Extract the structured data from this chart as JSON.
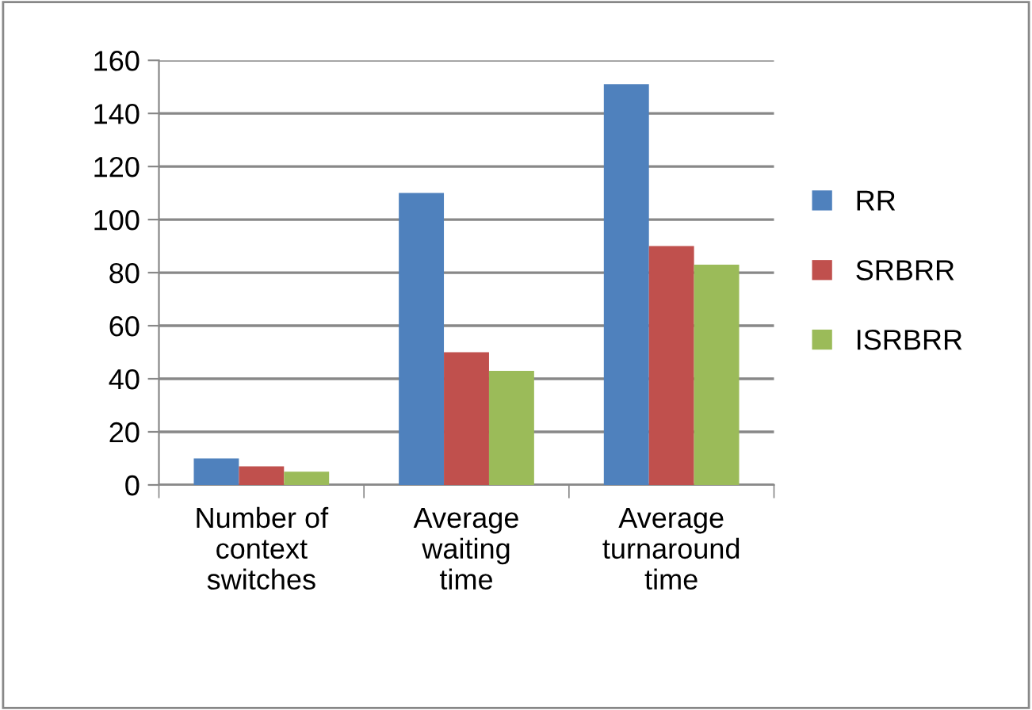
{
  "chart_data": {
    "type": "bar",
    "categories": [
      "Number of\ncontext\nswitches",
      "Average\nwaiting\ntime",
      "Average\nturnaround\ntime"
    ],
    "series": [
      {
        "name": "RR",
        "color": "#4f81bd",
        "values": [
          10,
          110,
          151
        ]
      },
      {
        "name": "SRBRR",
        "color": "#c0504d",
        "values": [
          7,
          50,
          90
        ]
      },
      {
        "name": "ISRBRR",
        "color": "#9bbb59",
        "values": [
          5,
          43,
          83
        ]
      }
    ],
    "ylim": [
      0,
      160
    ],
    "yticks": [
      0,
      20,
      40,
      60,
      80,
      100,
      120,
      140,
      160
    ],
    "grid": "y",
    "legend": "right"
  }
}
